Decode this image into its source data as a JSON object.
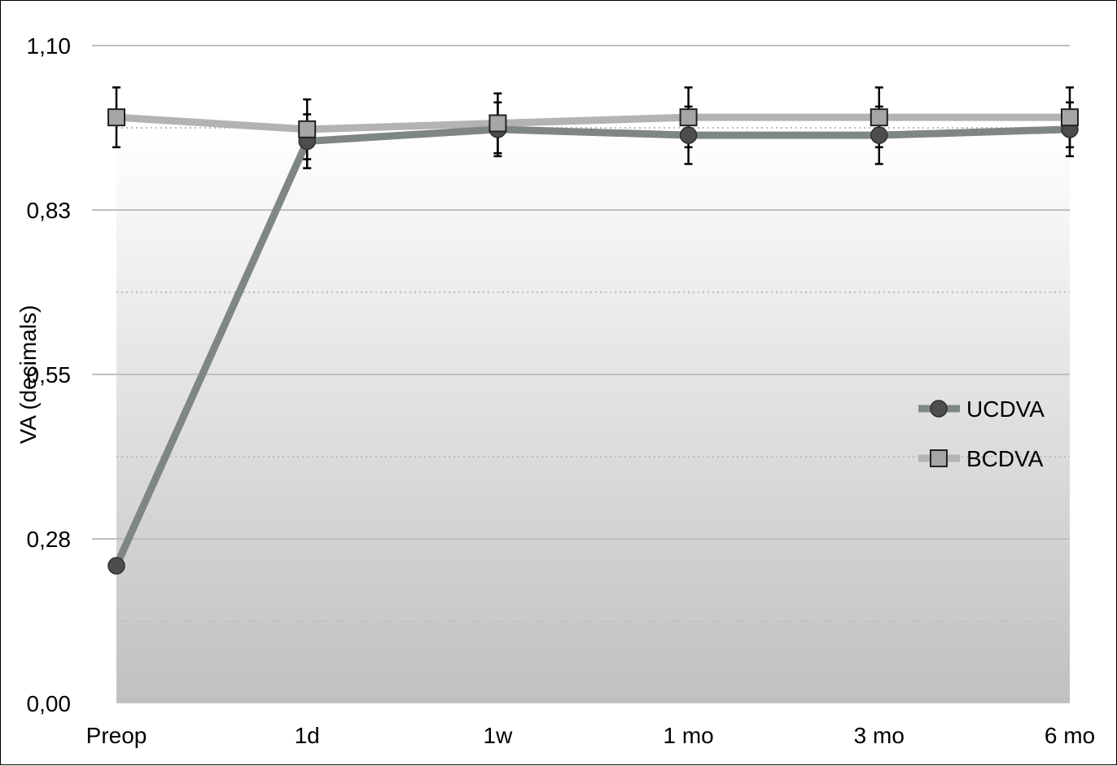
{
  "chart_data": {
    "type": "line",
    "title": "",
    "xlabel": "",
    "ylabel": "VA (decimals)",
    "categories": [
      "Preop",
      "1d",
      "1w",
      "1 mo",
      "3 mo",
      "6 mo"
    ],
    "yticks": [
      "0,00",
      "0,28",
      "0,55",
      "0,83",
      "1,10"
    ],
    "ytick_values": [
      0,
      0.275,
      0.55,
      0.825,
      1.1
    ],
    "ylim": [
      0,
      1.1
    ],
    "minor_gridlines": [
      0.1375,
      0.4125,
      0.6875,
      0.9625
    ],
    "grid": true,
    "legend_position": "right",
    "series": [
      {
        "name": "UCDVA",
        "marker": "circle",
        "color": "#7f8783",
        "marker_color": "#4d4d4d",
        "values": [
          0.23,
          0.94,
          0.96,
          0.95,
          0.95,
          0.96
        ],
        "error": [
          null,
          0.045,
          0.045,
          0.048,
          0.048,
          0.045
        ]
      },
      {
        "name": "BCDVA",
        "marker": "square",
        "color": "#b3b3b3",
        "marker_color": "#a6a6a6",
        "values": [
          0.98,
          0.96,
          0.97,
          0.98,
          0.98,
          0.98
        ],
        "error": [
          0.05,
          0.05,
          0.05,
          0.05,
          0.05,
          0.05
        ]
      }
    ]
  }
}
